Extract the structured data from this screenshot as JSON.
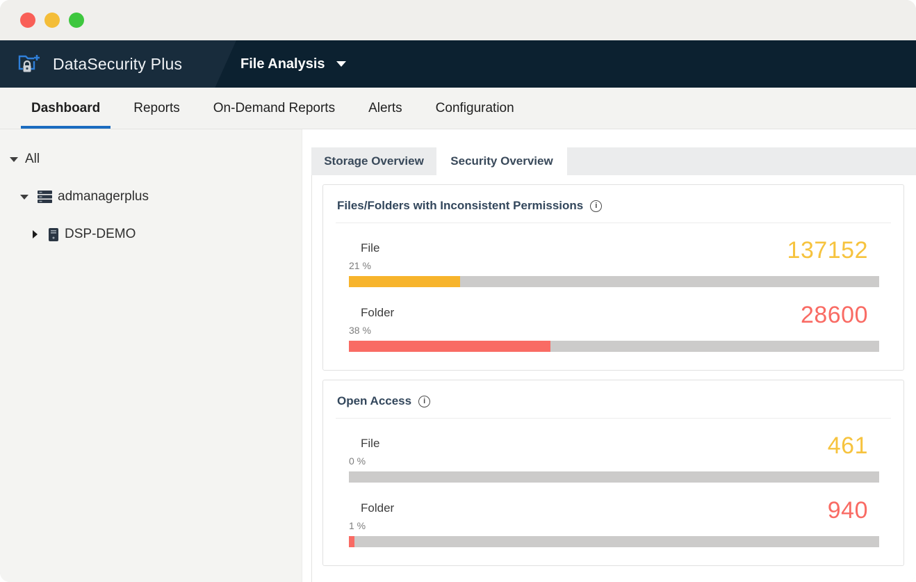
{
  "window": {
    "controls": [
      {
        "name": "close",
        "color": "#f95f57"
      },
      {
        "name": "minimize",
        "color": "#f4bd38"
      },
      {
        "name": "zoom",
        "color": "#3ec73e"
      }
    ]
  },
  "header": {
    "brand": "DataSecurity Plus",
    "module": "File Analysis"
  },
  "nav": {
    "items": [
      {
        "label": "Dashboard",
        "active": true
      },
      {
        "label": "Reports",
        "active": false
      },
      {
        "label": "On-Demand Reports",
        "active": false
      },
      {
        "label": "Alerts",
        "active": false
      },
      {
        "label": "Configuration",
        "active": false
      }
    ]
  },
  "sidebar": {
    "tree": [
      {
        "label": "All",
        "state": "expanded",
        "icon": null
      },
      {
        "label": "admanagerplus",
        "state": "expanded",
        "icon": "server-group-icon"
      },
      {
        "label": "DSP-DEMO",
        "state": "collapsed",
        "icon": "server-icon"
      }
    ]
  },
  "content": {
    "tabs": [
      {
        "label": "Storage Overview",
        "active": false
      },
      {
        "label": "Security Overview",
        "active": true
      }
    ],
    "cards": [
      {
        "title": "Files/Folders with Inconsistent Permissions",
        "info_icon": "i",
        "rows": [
          {
            "label": "File",
            "percent_label": "21 %",
            "percent": 21,
            "value": "137152",
            "bar_color": "#f7b42c",
            "value_color": "#f6c33e"
          },
          {
            "label": "Folder",
            "percent_label": "38 %",
            "percent": 38,
            "value": "28600",
            "bar_color": "#f96b64",
            "value_color": "#f96b64"
          }
        ]
      },
      {
        "title": "Open Access",
        "info_icon": "i",
        "rows": [
          {
            "label": "File",
            "percent_label": "0 %",
            "percent": 0,
            "value": "461",
            "bar_color": "#f7b42c",
            "value_color": "#f6c33e"
          },
          {
            "label": "Folder",
            "percent_label": "1 %",
            "percent": 1,
            "value": "940",
            "bar_color": "#f96b64",
            "value_color": "#f96b64"
          }
        ]
      }
    ]
  },
  "colors": {
    "accent_blue": "#1b6cc0",
    "header_bg": "#0c2130",
    "bar_track": "#cccbca",
    "yellow": "#f7b42c",
    "red": "#f96b64"
  }
}
